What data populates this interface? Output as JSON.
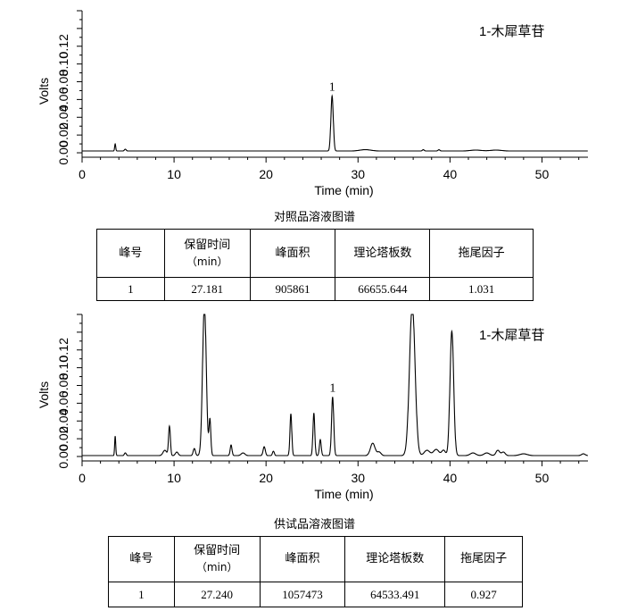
{
  "chart_data": [
    {
      "type": "line",
      "title": "",
      "annotation": "1-木犀草苷",
      "xlabel": "Time (min)",
      "ylabel": "Volts",
      "xlim": [
        0,
        55
      ],
      "ylim": [
        -0.005,
        0.16
      ],
      "xticks": [
        0,
        10,
        20,
        30,
        40,
        50
      ],
      "yticks": [
        0.0,
        0.02,
        0.04,
        0.06,
        0.08,
        0.1,
        0.12
      ],
      "ytick_labels": [
        "0.00",
        "0.02",
        "0.04",
        "0.06",
        "0.08",
        "0.10",
        "0.12"
      ],
      "peak_label": "1",
      "peak_label_x": 27.181,
      "baseline": 0.002,
      "peaks": [
        {
          "x": 3.6,
          "height": 0.008,
          "width": 0.06
        },
        {
          "x": 4.7,
          "height": 0.002,
          "width": 0.1
        },
        {
          "x": 27.181,
          "height": 0.062,
          "width": 0.13
        },
        {
          "x": 30.8,
          "height": 0.0015,
          "width": 0.6
        },
        {
          "x": 37.1,
          "height": 0.0015,
          "width": 0.1
        },
        {
          "x": 38.8,
          "height": 0.0015,
          "width": 0.1
        },
        {
          "x": 42.8,
          "height": 0.001,
          "width": 0.6
        },
        {
          "x": 45.0,
          "height": 0.001,
          "width": 0.6
        }
      ]
    },
    {
      "type": "line",
      "title": "",
      "annotation": "1-木犀草苷",
      "xlabel": "Time (min)",
      "ylabel": "Volts",
      "xlim": [
        0,
        55
      ],
      "ylim": [
        -0.005,
        0.16
      ],
      "xticks": [
        0,
        10,
        20,
        30,
        40,
        50
      ],
      "yticks": [
        0.0,
        0.02,
        0.04,
        0.06,
        0.08,
        0.1,
        0.12
      ],
      "ytick_labels": [
        "0.00",
        "0.02",
        "0.04",
        "0.06",
        "0.08",
        "0.10",
        "0.12"
      ],
      "peak_label": "1",
      "peak_label_x": 27.24,
      "baseline": 0.001,
      "peaks": [
        {
          "x": 3.6,
          "height": 0.022,
          "width": 0.06
        },
        {
          "x": 4.7,
          "height": 0.003,
          "width": 0.1
        },
        {
          "x": 9.0,
          "height": 0.006,
          "width": 0.2
        },
        {
          "x": 9.5,
          "height": 0.033,
          "width": 0.1
        },
        {
          "x": 10.3,
          "height": 0.004,
          "width": 0.15
        },
        {
          "x": 12.2,
          "height": 0.008,
          "width": 0.12
        },
        {
          "x": 13.3,
          "height": 0.17,
          "width": 0.2
        },
        {
          "x": 13.9,
          "height": 0.04,
          "width": 0.1
        },
        {
          "x": 16.2,
          "height": 0.012,
          "width": 0.1
        },
        {
          "x": 17.5,
          "height": 0.003,
          "width": 0.2
        },
        {
          "x": 19.8,
          "height": 0.01,
          "width": 0.12
        },
        {
          "x": 20.8,
          "height": 0.005,
          "width": 0.1
        },
        {
          "x": 22.7,
          "height": 0.047,
          "width": 0.1
        },
        {
          "x": 25.2,
          "height": 0.048,
          "width": 0.1
        },
        {
          "x": 25.9,
          "height": 0.018,
          "width": 0.1
        },
        {
          "x": 27.24,
          "height": 0.066,
          "width": 0.12
        },
        {
          "x": 31.6,
          "height": 0.014,
          "width": 0.25
        },
        {
          "x": 32.3,
          "height": 0.004,
          "width": 0.2
        },
        {
          "x": 35.9,
          "height": 0.17,
          "width": 0.3
        },
        {
          "x": 37.5,
          "height": 0.006,
          "width": 0.3
        },
        {
          "x": 38.5,
          "height": 0.007,
          "width": 0.3
        },
        {
          "x": 39.3,
          "height": 0.006,
          "width": 0.2
        },
        {
          "x": 40.2,
          "height": 0.14,
          "width": 0.2
        },
        {
          "x": 42.5,
          "height": 0.003,
          "width": 0.3
        },
        {
          "x": 44.0,
          "height": 0.003,
          "width": 0.3
        },
        {
          "x": 45.2,
          "height": 0.006,
          "width": 0.2
        },
        {
          "x": 45.8,
          "height": 0.004,
          "width": 0.2
        },
        {
          "x": 48.0,
          "height": 0.002,
          "width": 0.4
        },
        {
          "x": 54.5,
          "height": 0.002,
          "width": 0.2
        }
      ]
    }
  ],
  "reference": {
    "caption": "对照品溶液图谱",
    "headers": [
      "峰号",
      "保留时间",
      "（min）",
      "峰面积",
      "理论塔板数",
      "拖尾因子"
    ],
    "row": [
      "1",
      "27.181",
      "905861",
      "66655.644",
      "1.031"
    ]
  },
  "sample": {
    "caption": "供试品溶液图谱",
    "headers": [
      "峰号",
      "保留时间",
      "（min）",
      "峰面积",
      "理论塔板数",
      "拖尾因子"
    ],
    "row": [
      "1",
      "27.240",
      "1057473",
      "64533.491",
      "0.927"
    ]
  }
}
